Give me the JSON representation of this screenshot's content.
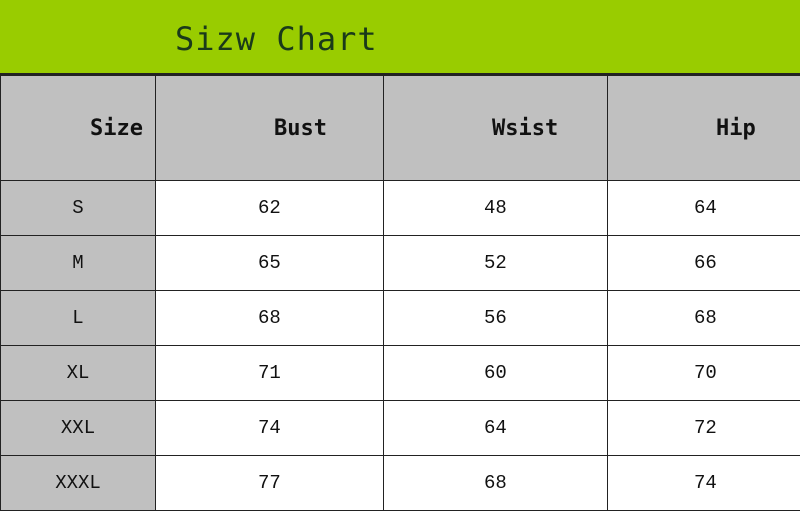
{
  "title": "Sizw Chart",
  "colors": {
    "title_bg": "#99cc00",
    "header_bg": "#c0c0c0",
    "size_col_bg": "#c0c0c0"
  },
  "headers": [
    "Size",
    "Bust",
    "Wsist",
    "Hip"
  ],
  "rows": [
    [
      "S",
      "62",
      "48",
      "64"
    ],
    [
      "M",
      "65",
      "52",
      "66"
    ],
    [
      "L",
      "68",
      "56",
      "68"
    ],
    [
      "XL",
      "71",
      "60",
      "70"
    ],
    [
      "XXL",
      "74",
      "64",
      "72"
    ],
    [
      "XXXL",
      "77",
      "68",
      "74"
    ]
  ]
}
